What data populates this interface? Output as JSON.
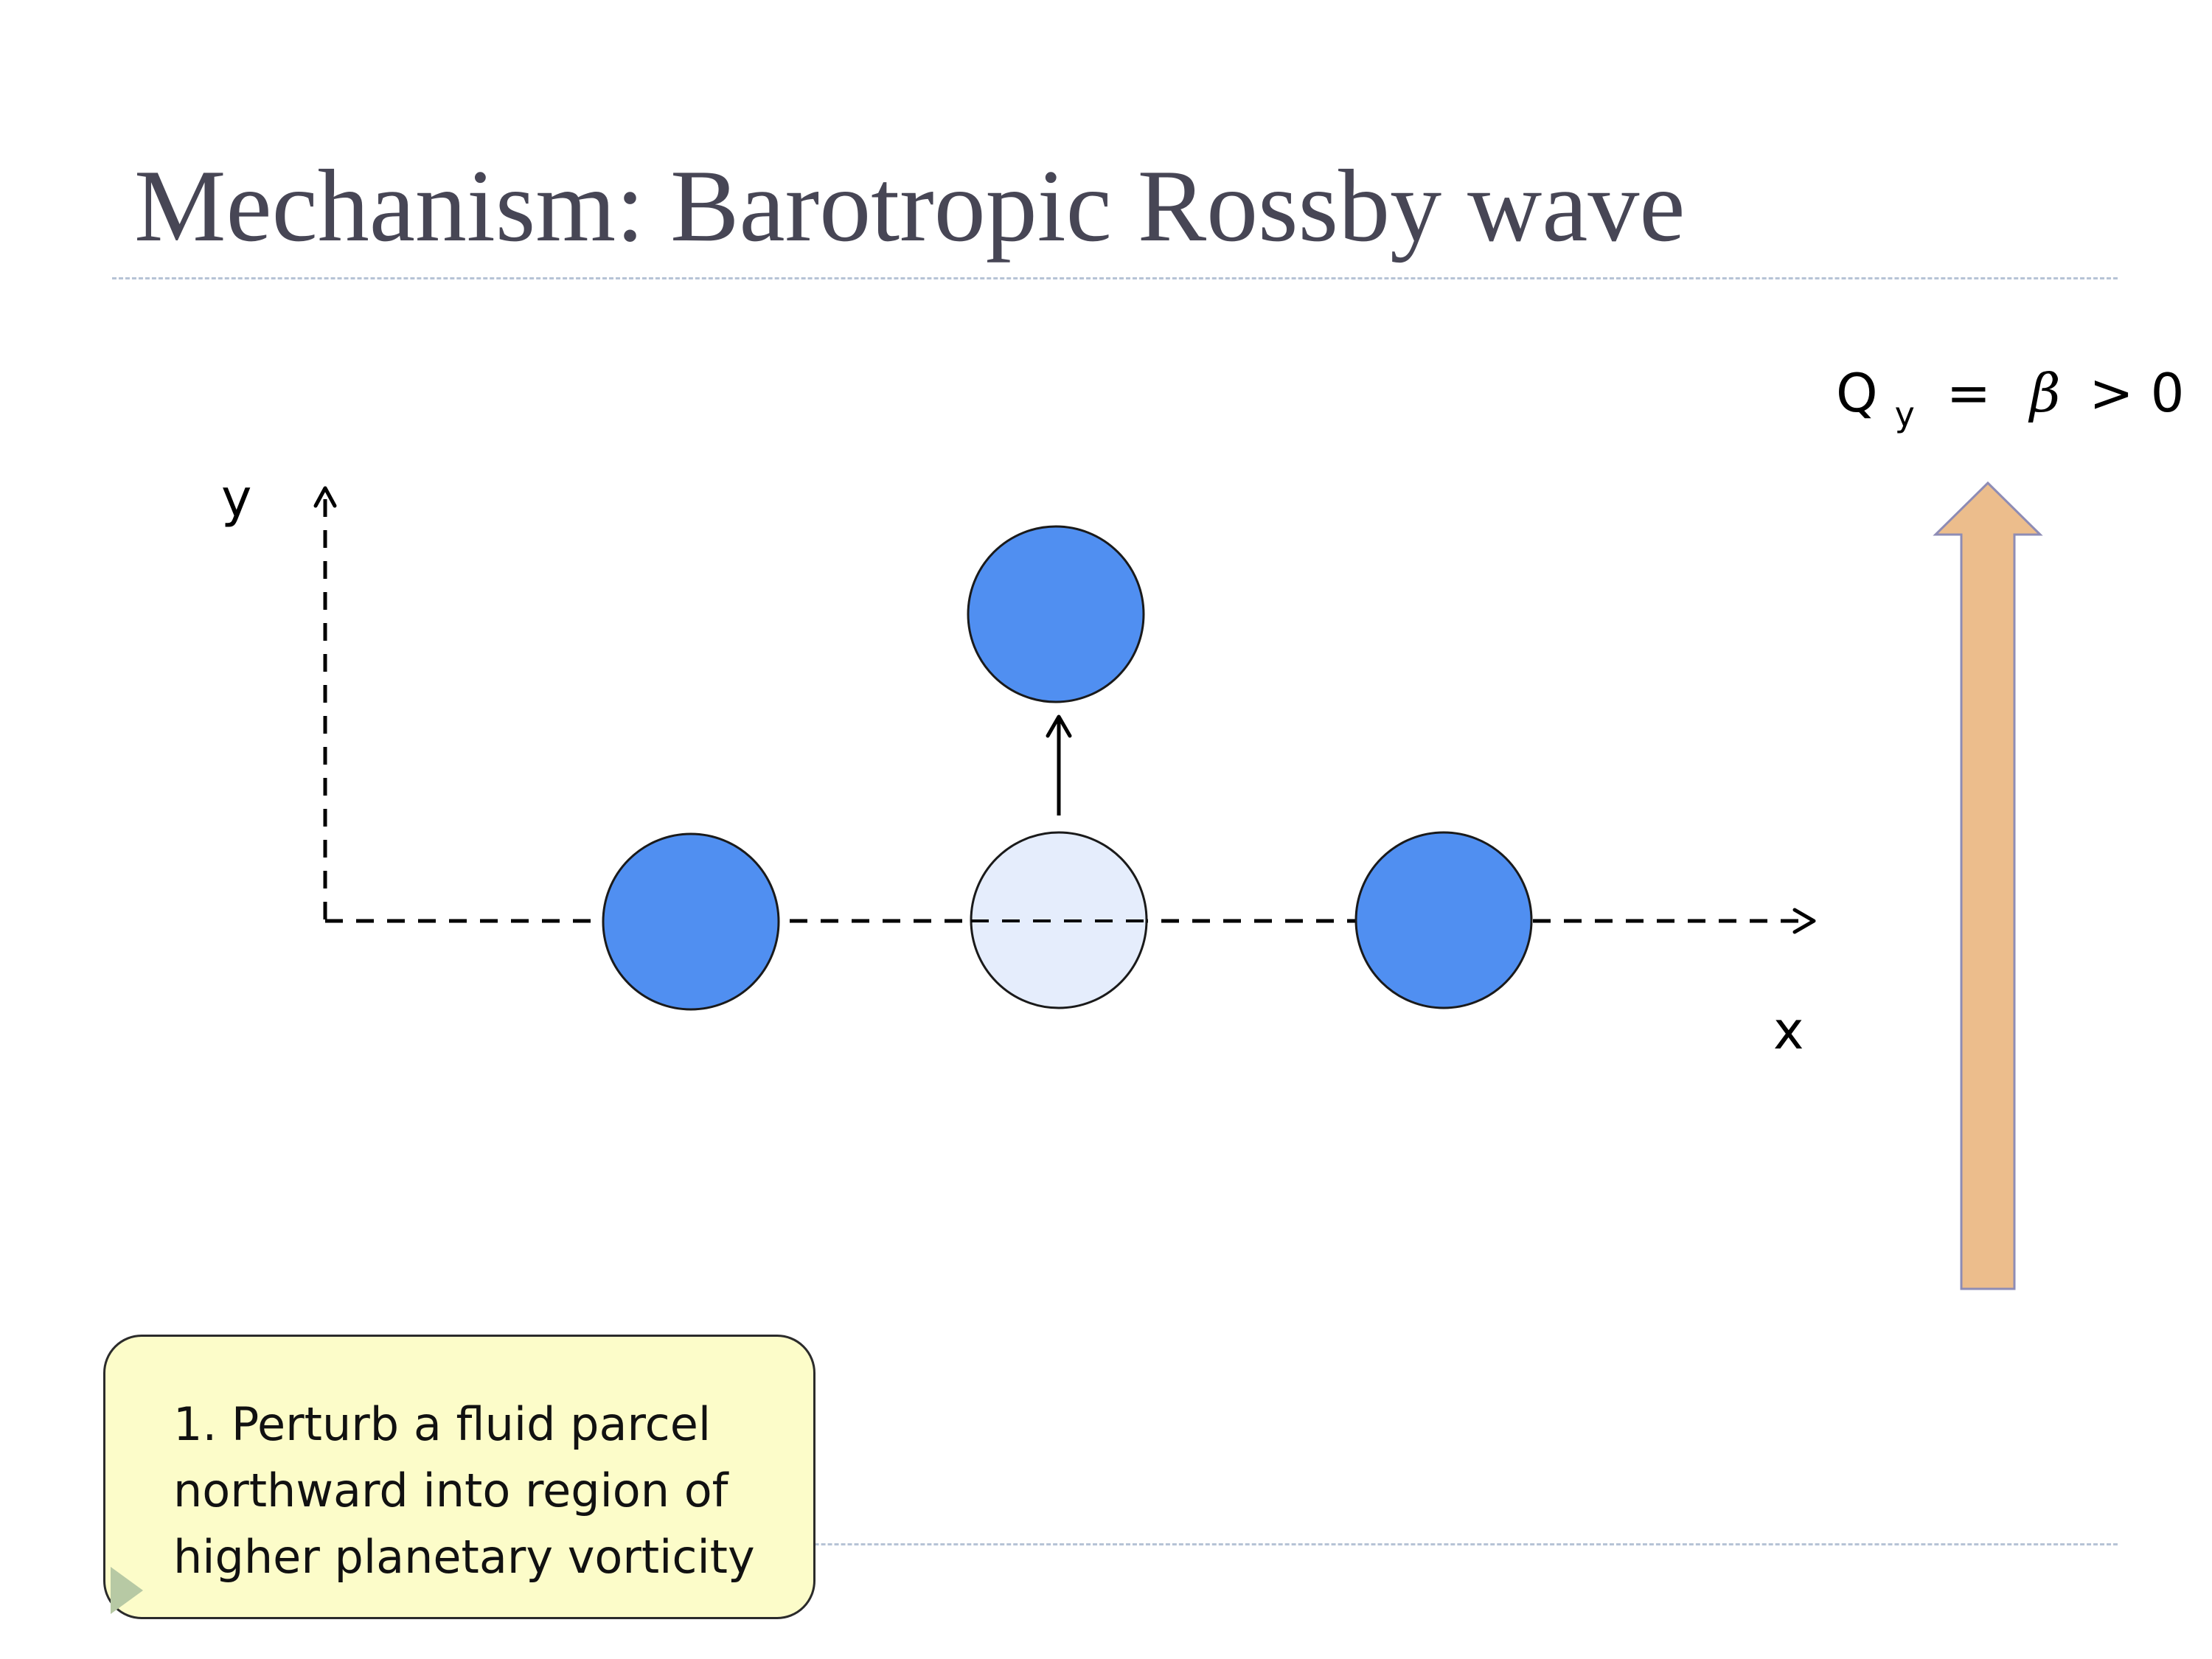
{
  "slide": {
    "title": "Mechanism: Barotropic Rossby wave"
  },
  "diagram": {
    "axis_y_label": "y",
    "axis_x_label": "x",
    "gradient_label_base": "Q",
    "gradient_label_sub": "y",
    "gradient_label_eq": "=",
    "gradient_label_beta": "β",
    "gradient_label_rest": "> 0",
    "colors": {
      "parcel": "#508ff1",
      "parcel_origin": "#e5edfc",
      "gradient_arrow": "#ecbd8c",
      "gradient_arrow_stroke": "#8e8cb5"
    },
    "parcels": [
      {
        "name": "parcel-left",
        "state": "resting"
      },
      {
        "name": "parcel-displaced-origin",
        "state": "original-position"
      },
      {
        "name": "parcel-right",
        "state": "resting"
      },
      {
        "name": "parcel-displaced",
        "state": "displaced-north"
      }
    ]
  },
  "callout": {
    "lines": [
      "1. Perturb a fluid parcel",
      "northward into region of",
      "higher planetary vorticity"
    ]
  },
  "icons": [
    "bullet-triangle-icon"
  ]
}
